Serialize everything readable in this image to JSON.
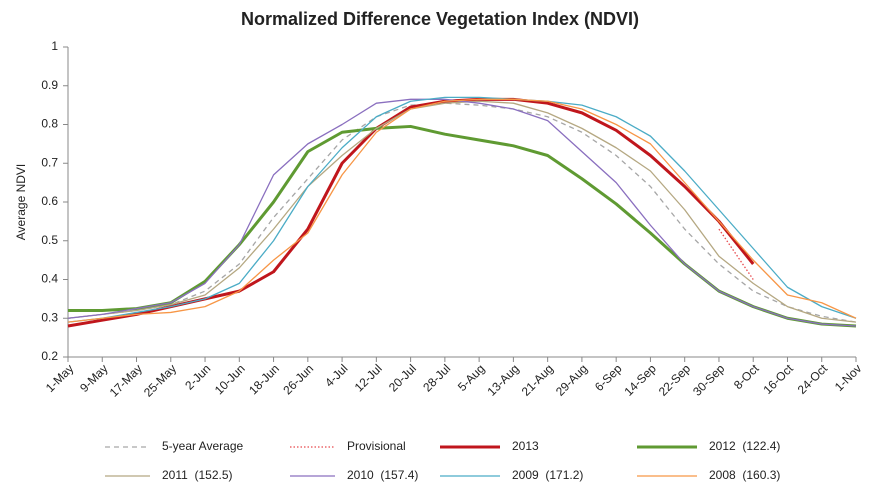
{
  "chart_data": {
    "type": "line",
    "title": "Normalized Difference Vegetation Index (NDVI)",
    "y_label": "Average NDVI",
    "categories": [
      "1-May",
      "9-May",
      "17-May",
      "25-May",
      "2-Jun",
      "10-Jun",
      "18-Jun",
      "26-Jun",
      "4-Jul",
      "12-Jul",
      "20-Jul",
      "28-Jul",
      "5-Aug",
      "13-Aug",
      "21-Aug",
      "29-Aug",
      "6-Sep",
      "14-Sep",
      "22-Sep",
      "30-Sep",
      "8-Oct",
      "16-Oct",
      "24-Oct",
      "1-Nov"
    ],
    "ylim": [
      0.2,
      1
    ],
    "yticks": [
      0.2,
      0.3,
      0.4,
      0.5,
      0.6,
      0.7,
      0.8,
      0.9,
      1
    ],
    "grid": false,
    "legend": "bottom",
    "series": [
      {
        "name": "5-year Average",
        "color": "#a6a6a6",
        "style": "dashed",
        "values": [
          0.3,
          0.31,
          0.32,
          0.335,
          0.37,
          0.44,
          0.56,
          0.66,
          0.76,
          0.82,
          0.85,
          0.855,
          0.85,
          0.84,
          0.82,
          0.78,
          0.72,
          0.64,
          0.53,
          0.44,
          0.37,
          0.33,
          0.305,
          0.29
        ]
      },
      {
        "name": "Provisional",
        "color": "#e8494d",
        "style": "dotted",
        "values": [
          null,
          null,
          null,
          null,
          null,
          null,
          null,
          null,
          null,
          null,
          null,
          null,
          null,
          null,
          null,
          null,
          null,
          null,
          null,
          0.53,
          0.4,
          null,
          null,
          null
        ]
      },
      {
        "name": "2013",
        "color": "#c0161c",
        "style": "bold",
        "values": [
          0.28,
          0.295,
          0.31,
          0.33,
          0.35,
          0.37,
          0.42,
          0.53,
          0.7,
          0.79,
          0.845,
          0.86,
          0.865,
          0.865,
          0.855,
          0.83,
          0.785,
          0.72,
          0.64,
          0.55,
          0.44,
          null,
          null,
          null
        ]
      },
      {
        "name": "2012  (122.4)",
        "color": "#5f9a32",
        "style": "bold",
        "values": [
          0.32,
          0.32,
          0.325,
          0.34,
          0.395,
          0.49,
          0.6,
          0.73,
          0.78,
          0.79,
          0.795,
          0.775,
          0.76,
          0.745,
          0.72,
          0.66,
          0.595,
          0.52,
          0.44,
          0.37,
          0.33,
          0.3,
          0.285,
          0.28
        ]
      },
      {
        "name": "2011  (152.5)",
        "color": "#b5a882",
        "style": "solid",
        "values": [
          0.3,
          0.31,
          0.32,
          0.335,
          0.36,
          0.43,
          0.53,
          0.64,
          0.72,
          0.79,
          0.84,
          0.855,
          0.86,
          0.855,
          0.83,
          0.79,
          0.74,
          0.68,
          0.58,
          0.46,
          0.39,
          0.33,
          0.3,
          0.29
        ]
      },
      {
        "name": "2010  (157.4)",
        "color": "#8a6fbf",
        "style": "solid",
        "values": [
          0.3,
          0.31,
          0.325,
          0.34,
          0.39,
          0.49,
          0.67,
          0.75,
          0.8,
          0.855,
          0.865,
          0.865,
          0.855,
          0.84,
          0.81,
          0.73,
          0.65,
          0.54,
          0.44,
          0.37,
          0.33,
          0.3,
          0.285,
          0.28
        ]
      },
      {
        "name": "2009  (171.2)",
        "color": "#4bacc6",
        "style": "solid",
        "values": [
          0.29,
          0.3,
          0.315,
          0.33,
          0.35,
          0.39,
          0.5,
          0.64,
          0.74,
          0.82,
          0.86,
          0.87,
          0.87,
          0.865,
          0.86,
          0.85,
          0.82,
          0.77,
          0.68,
          0.58,
          0.48,
          0.38,
          0.33,
          0.3
        ]
      },
      {
        "name": "2008  (160.3)",
        "color": "#f79646",
        "style": "solid",
        "values": [
          0.29,
          0.3,
          0.31,
          0.315,
          0.33,
          0.37,
          0.45,
          0.52,
          0.67,
          0.78,
          0.84,
          0.86,
          0.865,
          0.865,
          0.86,
          0.84,
          0.8,
          0.75,
          0.65,
          0.55,
          0.45,
          0.36,
          0.34,
          0.3
        ]
      }
    ]
  }
}
